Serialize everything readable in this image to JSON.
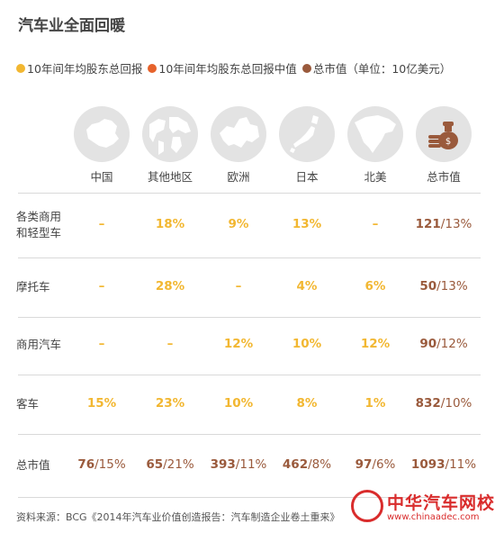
{
  "title": "汽车业全面回暖",
  "legend": [
    {
      "label": "10年间年均股东总回报",
      "color": "#f2b731"
    },
    {
      "label": "10年间年均股东总回报中值",
      "color": "#e6622b"
    },
    {
      "label": "总市值（单位：10亿美元）",
      "color": "#9a5a3c"
    }
  ],
  "icons": [
    {
      "name": "china-map-icon"
    },
    {
      "name": "world-globe-icon"
    },
    {
      "name": "europe-map-icon"
    },
    {
      "name": "japan-map-icon"
    },
    {
      "name": "north-america-map-icon"
    },
    {
      "name": "money-bag-coins-icon"
    }
  ],
  "colors": {
    "yellow": "#f2b731",
    "orange": "#e6622b",
    "brown": "#9a5a3c",
    "dash": "#f2b731"
  },
  "chart_data": {
    "type": "table",
    "title": "汽车业全面回暖",
    "columns": [
      "中国",
      "其他地区",
      "欧洲",
      "日本",
      "北美",
      "总市值"
    ],
    "rows": [
      {
        "label": "各类商用和轻型车",
        "label_lines": [
          "各类商用",
          "和轻型车"
        ],
        "values": [
          "–",
          "18%",
          "9%",
          "13%",
          "–"
        ],
        "market_cap": "121",
        "market_cap_return": "13%"
      },
      {
        "label": "摩托车",
        "label_lines": [
          "摩托车"
        ],
        "values": [
          "–",
          "28%",
          "–",
          "4%",
          "6%"
        ],
        "market_cap": "50",
        "market_cap_return": "13%"
      },
      {
        "label": "商用汽车",
        "label_lines": [
          "商用汽车"
        ],
        "values": [
          "–",
          "–",
          "12%",
          "10%",
          "12%"
        ],
        "market_cap": "90",
        "market_cap_return": "12%"
      },
      {
        "label": "客车",
        "label_lines": [
          "客车"
        ],
        "values": [
          "15%",
          "23%",
          "10%",
          "8%",
          "1%"
        ],
        "market_cap": "832",
        "market_cap_return": "10%"
      }
    ],
    "total_row": {
      "label": "总市值",
      "values": [
        {
          "cap": "76",
          "ret": "15%"
        },
        {
          "cap": "65",
          "ret": "21%"
        },
        {
          "cap": "393",
          "ret": "11%"
        },
        {
          "cap": "462",
          "ret": "8%"
        },
        {
          "cap": "97",
          "ret": "6%"
        },
        {
          "cap": "1093",
          "ret": "11%"
        }
      ]
    }
  },
  "footer": "资料来源：BCG《2014年汽车业价值创造报告：汽车制造企业卷土重来》",
  "watermark": {
    "text": "中华汽车网校",
    "url": "www.chinaadec.com"
  }
}
